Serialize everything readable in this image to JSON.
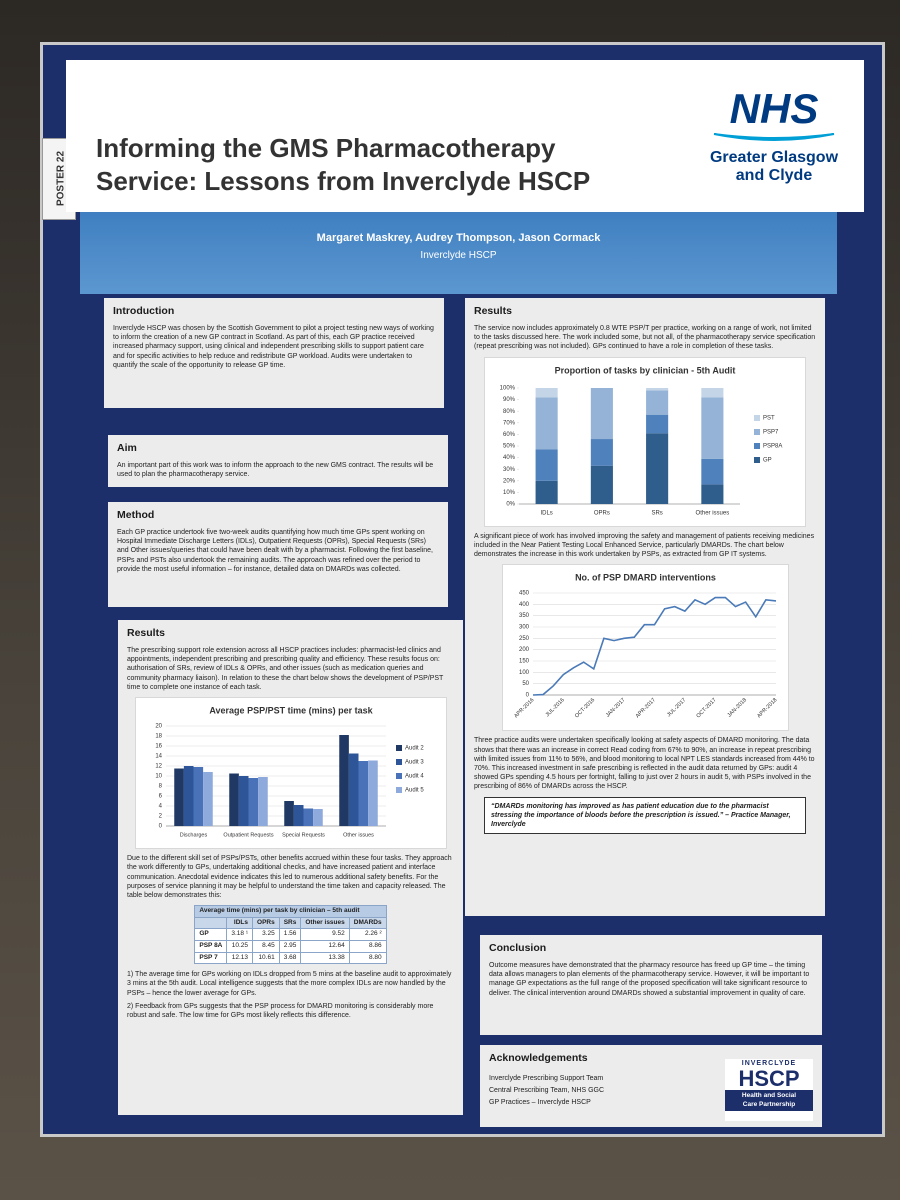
{
  "poster_label": "POSTER 22",
  "header": {
    "title_line1": "Informing the GMS Pharmacotherapy",
    "title_line2": "Service: Lessons from Inverclyde HSCP",
    "logo": {
      "org": "NHS",
      "line1": "Greater Glasgow",
      "line2": "and Clyde"
    }
  },
  "authors": "Margaret Maskrey, Audrey Thompson, Jason Cormack",
  "affiliation": "Inverclyde HSCP",
  "introduction": {
    "heading": "Introduction",
    "text": "Inverclyde HSCP was chosen by the Scottish Government to pilot a project testing new ways of working to inform the creation of a new GP contract in Scotland. As part of this, each GP practice received increased pharmacy support, using clinical and independent prescribing skills to support patient care and for specific activities to help reduce and redistribute GP workload. Audits were undertaken to quantify the scale of the opportunity to release GP time."
  },
  "aim": {
    "heading": "Aim",
    "text": "An important part of this work was to inform the approach to the new GMS contract. The results will be used to plan the pharmacotherapy service."
  },
  "method": {
    "heading": "Method",
    "text": "Each GP practice undertook five two-week audits quantifying how much time GPs spent working on Hospital Immediate Discharge Letters (IDLs), Outpatient Requests (OPRs), Special Requests (SRs) and Other issues/queries that could have been dealt with by a pharmacist. Following the first baseline, PSPs and PSTs also undertook the remaining audits. The approach was refined over the period to provide the most useful information – for instance, detailed data on DMARDs was collected."
  },
  "results_left": {
    "heading": "Results",
    "text": "The prescribing support role extension across all HSCP practices includes: pharmacist-led clinics and appointments, independent prescribing and prescribing quality and efficiency. These results focus on: authorisation of SRs, review of IDLs & OPRs, and other issues (such as medication queries and community pharmacy liaison). In relation to these the chart below shows the development of PSP/PST time to complete one instance of each task.",
    "chart": {
      "type": "bar",
      "title": "Average PSP/PST time (mins) per task",
      "categories": [
        "Discharges",
        "Outpatient Requests",
        "Special Requests",
        "Other issues"
      ],
      "series": [
        {
          "name": "Audit 2",
          "color": "#1f3864",
          "values": [
            11.5,
            10.5,
            5,
            18.2
          ]
        },
        {
          "name": "Audit 3",
          "color": "#2e5597",
          "values": [
            12,
            10,
            4.2,
            14.5
          ]
        },
        {
          "name": "Audit 4",
          "color": "#4a72b8",
          "values": [
            11.8,
            9.6,
            3.5,
            13
          ]
        },
        {
          "name": "Audit 5",
          "color": "#8ea9db",
          "values": [
            10.8,
            9.8,
            3.4,
            13.1
          ]
        }
      ],
      "ylim": [
        0,
        20
      ],
      "yticks": [
        0,
        2,
        4,
        6,
        8,
        10,
        12,
        14,
        16,
        18,
        20
      ],
      "grid": true,
      "legend": "right"
    },
    "text2": "Due to the different skill set of PSPs/PSTs, other benefits accrued within these four tasks. They approach the work differently to GPs, undertaking additional checks, and have increased patient and interface communication. Anecdotal evidence indicates this led to numerous additional safety benefits. For the purposes of service planning it may be helpful to understand the time taken and capacity released. The table below demonstrates this:",
    "table": {
      "caption": "Average time (mins) per task by clinician – 5th audit",
      "columns": [
        "IDLs",
        "OPRs",
        "SRs",
        "Other issues",
        "DMARDs"
      ],
      "rows": [
        [
          "GP",
          "3.18 ¹",
          "3.25",
          "1.56",
          "9.52",
          "2.26 ²"
        ],
        [
          "PSP 8A",
          "10.25",
          "8.45",
          "2.95",
          "12.64",
          "8.86"
        ],
        [
          "PSP 7",
          "12.13",
          "10.61",
          "3.68",
          "13.38",
          "8.80"
        ]
      ]
    },
    "notes": [
      "1) The average time for GPs working on IDLs dropped from 5 mins at the baseline audit to approximately 3 mins at the 5th audit. Local intelligence suggests that the more complex IDLs are now handled by the PSPs – hence the lower average for GPs.",
      "2) Feedback from GPs suggests that the PSP process for DMARD monitoring is considerably more robust and safe. The low time for GPs most likely reflects this difference."
    ]
  },
  "results_right": {
    "heading": "Results",
    "text": "The service now includes approximately 0.8 WTE PSP/T per practice, working on a range of work, not limited to the tasks discussed here. The work included some, but not all, of the pharmacotherapy service specification (repeat prescribing was not included). GPs continued to have a role in completion of these tasks.",
    "chart1": {
      "type": "stacked_bar",
      "title": "Proportion of tasks by clinician - 5th Audit",
      "categories": [
        "IDLs",
        "OPRs",
        "SRs",
        "Other issues"
      ],
      "series": [
        {
          "name": "GP",
          "color": "#2f5d8c",
          "values": [
            20,
            33,
            61,
            17
          ]
        },
        {
          "name": "PSP8A",
          "color": "#4f81bd",
          "values": [
            27,
            23,
            16,
            22
          ]
        },
        {
          "name": "PSP7",
          "color": "#95b3d7",
          "values": [
            45,
            44,
            21,
            53
          ]
        },
        {
          "name": "PST",
          "color": "#c5d5e8",
          "values": [
            8,
            0,
            2,
            8
          ]
        }
      ],
      "ylim": [
        0,
        100
      ],
      "yticks": [
        {
          "value": 0,
          "label": "0%"
        },
        {
          "value": 10,
          "label": "10%"
        },
        {
          "value": 20,
          "label": "20%"
        },
        {
          "value": 30,
          "label": "30%"
        },
        {
          "value": 40,
          "label": "40%"
        },
        {
          "value": 50,
          "label": "50%"
        },
        {
          "value": 60,
          "label": "60%"
        },
        {
          "value": 70,
          "label": "70%"
        },
        {
          "value": 80,
          "label": "80%"
        },
        {
          "value": 90,
          "label": "90%"
        },
        {
          "value": 100,
          "label": "100%"
        }
      ],
      "grid": false,
      "legend": "right"
    },
    "text2": "A significant piece of work has involved improving the safety and management of patients receiving medicines included in the Near Patient Testing Local Enhanced Service, particularly DMARDs. The chart below demonstrates the increase in this work undertaken by PSPs, as extracted from GP IT systems.",
    "chart2": {
      "type": "line",
      "title": "No. of PSP DMARD interventions",
      "color": "#4a7ab8",
      "categories": [
        "APR-2016",
        null,
        null,
        "JUL-2016",
        null,
        null,
        "OCT-2016",
        null,
        null,
        "JAN-2017",
        null,
        null,
        "APR-2017",
        null,
        null,
        "JUL-2017",
        null,
        null,
        "OCT-2017",
        null,
        null,
        "JAN-2018",
        null,
        null,
        "APR-2018"
      ],
      "values": [
        0,
        2,
        40,
        90,
        120,
        145,
        115,
        250,
        240,
        250,
        255,
        310,
        310,
        380,
        390,
        370,
        420,
        400,
        430,
        430,
        390,
        410,
        345,
        420,
        415
      ],
      "ylim": [
        0,
        450
      ],
      "yticks": [
        0,
        50,
        100,
        150,
        200,
        250,
        300,
        350,
        400,
        450
      ],
      "grid": true
    },
    "text3": "Three practice audits were undertaken specifically looking at safety aspects of DMARD monitoring. The data shows that there was an increase in correct Read coding from 67% to 90%, an increase in repeat prescribing with limited issues from 11% to 56%, and blood monitoring to local NPT LES standards increased from 44% to 70%. This increased investment in safe prescribing is reflected in the audit data returned by GPs: audit 4 showed GPs spending 4.5 hours per fortnight, falling to just over 2 hours in audit 5, with PSPs involved in the prescribing of 86% of DMARDs across the HSCP.",
    "quote": "“DMARDs monitoring has improved as has patient education due to the pharmacist stressing the importance of bloods before the prescription is issued.” – Practice Manager, Inverclyde"
  },
  "conclusion": {
    "heading": "Conclusion",
    "text": "Outcome measures have demonstrated that the pharmacy resource has freed up GP time – the timing data allows managers to plan elements of the pharmacotherapy service. However, it will be important to manage GP expectations as the full range of the proposed specification will take significant resource to deliver. The clinical intervention around DMARDs showed a substantial improvement in quality of care."
  },
  "acknowledgements": {
    "heading": "Acknowledgements",
    "lines": [
      "Inverclyde Prescribing Support Team",
      "Central Prescribing Team, NHS GGC",
      "GP Practices – Inverclyde HSCP"
    ]
  },
  "hscp_logo": {
    "top": "INVERCLYDE",
    "main": "HSCP",
    "sub1": "Health and Social",
    "sub2": "Care Partnership"
  }
}
